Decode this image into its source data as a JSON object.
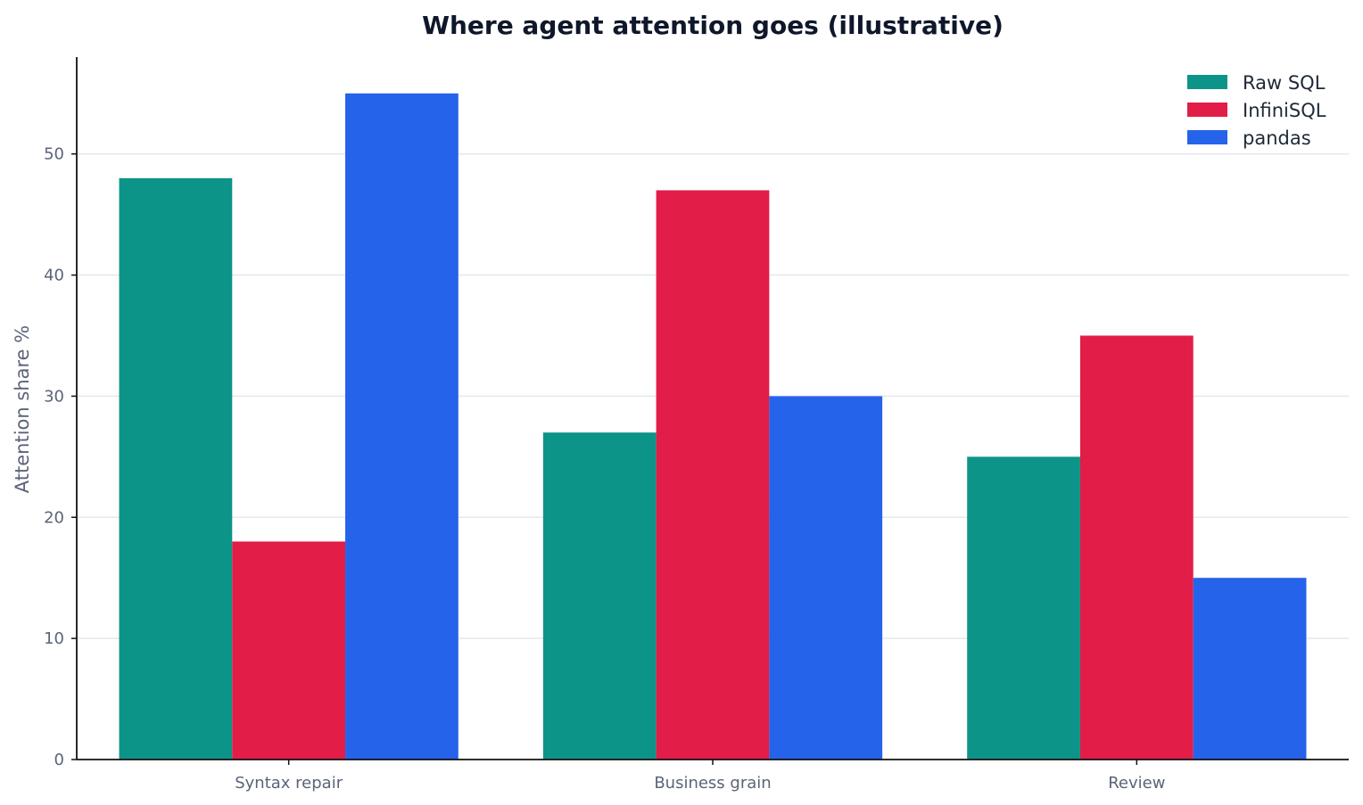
{
  "chart_data": {
    "type": "bar",
    "title": "Where agent attention goes (illustrative)",
    "xlabel": "",
    "ylabel": "Attention share %",
    "categories": [
      "Syntax repair",
      "Business grain",
      "Review"
    ],
    "series": [
      {
        "name": "Raw SQL",
        "color": "#0d9488",
        "values": [
          48,
          27,
          25
        ]
      },
      {
        "name": "InfiniSQL",
        "color": "#e11d48",
        "values": [
          18,
          47,
          35
        ]
      },
      {
        "name": "pandas",
        "color": "#2563eb",
        "values": [
          55,
          30,
          15
        ]
      }
    ],
    "ylim": [
      0,
      58
    ],
    "yticks": [
      0,
      10,
      20,
      30,
      40,
      50
    ],
    "grid": "horizontal",
    "legend_position": "top-right"
  }
}
